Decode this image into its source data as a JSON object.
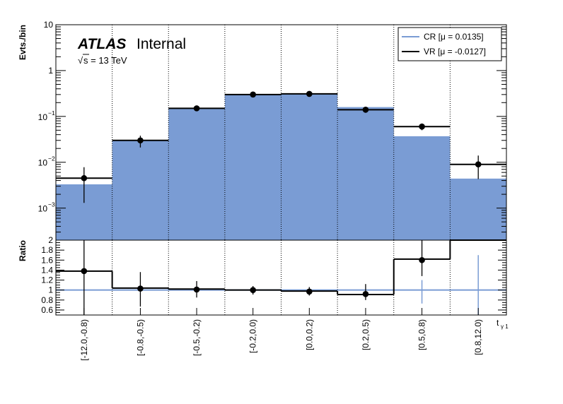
{
  "chart_data": [
    {
      "type": "histogram",
      "panel": "main",
      "ylabel": "Evts./bin",
      "yscale": "log",
      "ylim": [
        0.0002,
        10
      ],
      "y_ticks": [
        {
          "value": 10,
          "label": "10"
        },
        {
          "value": 1,
          "label": "1"
        },
        {
          "value": 0.1,
          "base": "10",
          "exp": "−1"
        },
        {
          "value": 0.01,
          "base": "10",
          "exp": "−2"
        },
        {
          "value": 0.001,
          "base": "10",
          "exp": "−3"
        }
      ],
      "categories": [
        "[-12.0,-0.8)",
        "[-0.8,-0.5)",
        "[-0.5,-0.2)",
        "[-0.2,0.0)",
        "[0.0,0.2)",
        "[0.2,0.5)",
        "[0.5,0.8)",
        "[0.8,12.0)"
      ],
      "atlas_label": "ATLAS",
      "atlas_status": "Internal",
      "energy_label": "s = 13 TeV",
      "energy_sqrt": "√",
      "series": [
        {
          "name": "CR [μ = 0.0135]",
          "style": "filled",
          "color": "#7a9cd4",
          "line_color": "#7a9cd4",
          "values": [
            0.0033,
            0.03,
            0.15,
            0.3,
            0.32,
            0.16,
            0.037,
            0.0044
          ]
        },
        {
          "name": "VR [μ = -0.0127]",
          "style": "line_with_points",
          "color": "#000000",
          "values": [
            0.0045,
            0.03,
            0.15,
            0.3,
            0.31,
            0.14,
            0.06,
            0.009
          ],
          "err_low": [
            0.0013,
            0.021,
            0.13,
            0.27,
            0.28,
            0.12,
            0.05,
            0.0043
          ],
          "err_high": [
            0.0078,
            0.038,
            0.17,
            0.33,
            0.34,
            0.16,
            0.07,
            0.014
          ]
        }
      ],
      "legend_position": "top-right",
      "grid": "vertical dotted at bin edges"
    },
    {
      "type": "ratio",
      "panel": "ratio",
      "ylabel": "Ratio",
      "ylim": [
        0.5,
        2.0
      ],
      "y_ticks": [
        "0.6",
        "0.8",
        "1",
        "1.2",
        "1.4",
        "1.6",
        "1.8",
        "2"
      ],
      "xlabel": "t",
      "xlabel_sub": "γ 1",
      "reference_line": 1,
      "reference_errors": [
        {
          "bin": 6,
          "low": 0.73,
          "high": 1.2
        },
        {
          "bin": 7,
          "low": 0.5,
          "high": 1.7
        }
      ],
      "ratio_step": [
        1.38,
        1.04,
        1.02,
        1.0,
        0.98,
        0.91,
        1.62,
        2.05
      ],
      "points": [
        {
          "bin": 0,
          "value": 1.38,
          "low": 0.5,
          "high": 2.0
        },
        {
          "bin": 1,
          "value": 1.03,
          "low": 0.67,
          "high": 1.36
        },
        {
          "bin": 2,
          "value": 1.01,
          "low": 0.85,
          "high": 1.18
        },
        {
          "bin": 3,
          "value": 1.0,
          "low": 0.91,
          "high": 1.08
        },
        {
          "bin": 4,
          "value": 0.97,
          "low": 0.89,
          "high": 1.06
        },
        {
          "bin": 5,
          "value": 0.92,
          "low": 0.8,
          "high": 1.12
        },
        {
          "bin": 6,
          "value": 1.6,
          "low": 1.28,
          "high": 2.0
        }
      ]
    }
  ]
}
